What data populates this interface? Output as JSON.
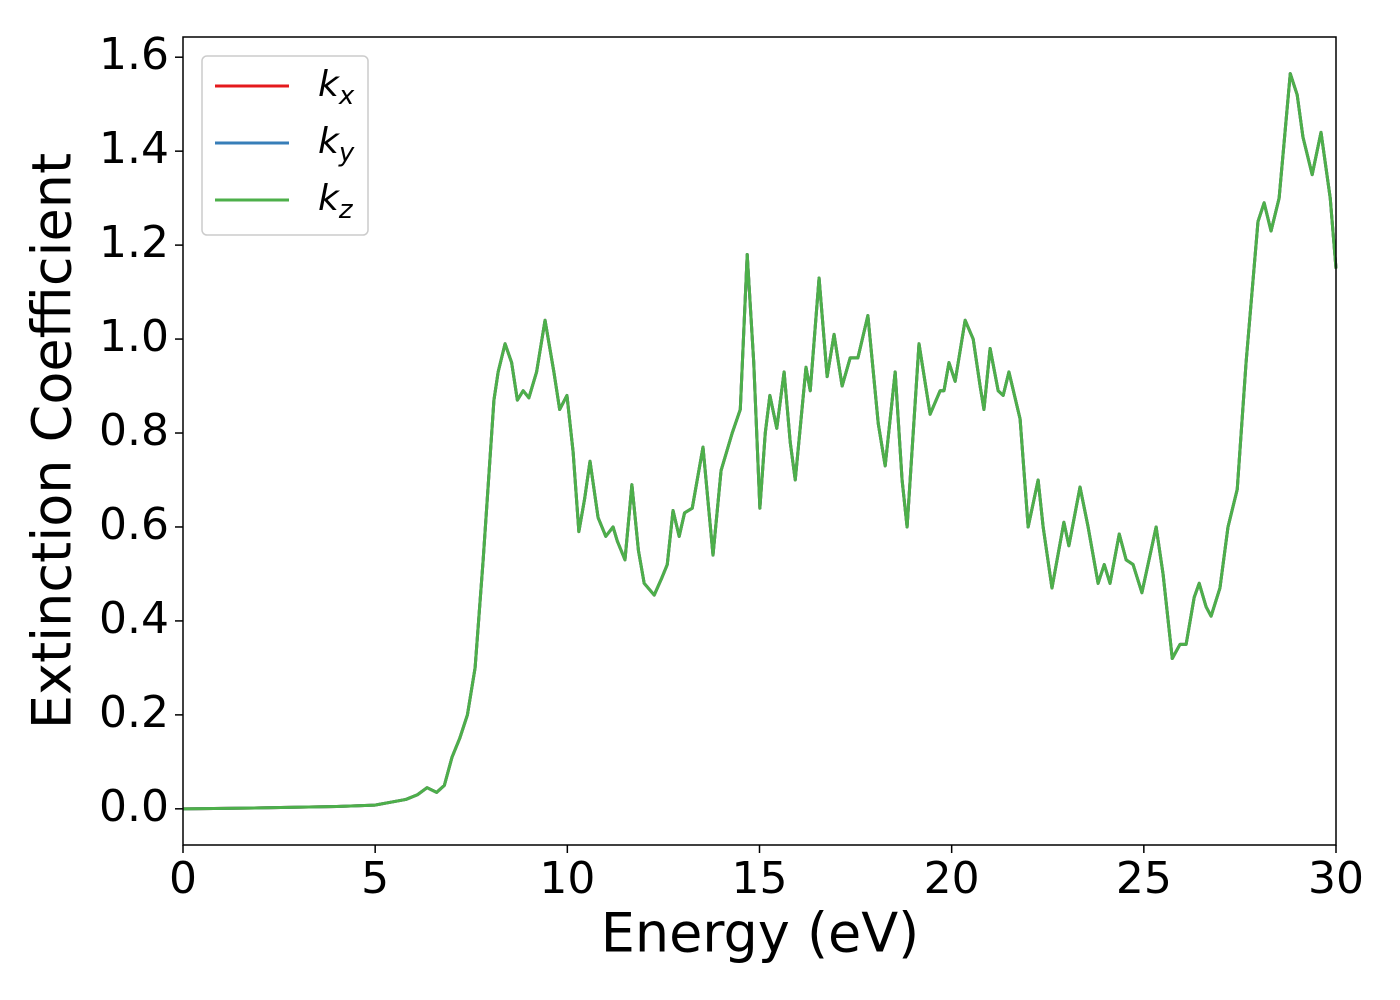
{
  "chart_data": {
    "type": "line",
    "xlabel": "Energy (eV)",
    "ylabel": "Extinction Coefficient",
    "x": [
      0,
      2,
      4,
      5,
      5.8,
      6.1,
      6.35,
      6.6,
      6.8,
      7.0,
      7.2,
      7.4,
      7.6,
      7.81,
      7.95,
      8.09,
      8.2,
      8.38,
      8.55,
      8.7,
      8.85,
      9.0,
      9.2,
      9.42,
      9.65,
      9.8,
      9.99,
      10.15,
      10.3,
      10.45,
      10.59,
      10.8,
      11.0,
      11.19,
      11.3,
      11.5,
      11.68,
      11.85,
      12.0,
      12.26,
      12.45,
      12.6,
      12.75,
      12.91,
      13.05,
      13.25,
      13.53,
      13.79,
      14.0,
      14.29,
      14.5,
      14.68,
      14.85,
      15.01,
      15.15,
      15.27,
      15.45,
      15.64,
      15.8,
      15.93,
      16.21,
      16.32,
      16.55,
      16.76,
      16.94,
      17.15,
      17.36,
      17.56,
      17.82,
      18.09,
      18.27,
      18.53,
      18.71,
      18.84,
      19.15,
      19.44,
      19.7,
      19.8,
      19.93,
      20.09,
      20.35,
      20.56,
      20.74,
      20.84,
      21.0,
      21.21,
      21.34,
      21.49,
      21.78,
      21.99,
      22.25,
      22.38,
      22.61,
      22.92,
      23.05,
      23.34,
      23.55,
      23.81,
      23.97,
      24.12,
      24.36,
      24.54,
      24.72,
      24.95,
      25.32,
      25.5,
      25.74,
      25.94,
      26.1,
      26.31,
      26.44,
      26.62,
      26.75,
      26.98,
      27.19,
      27.43,
      27.66,
      27.97,
      28.13,
      28.31,
      28.52,
      28.81,
      28.99,
      29.14,
      29.38,
      29.61,
      29.85,
      30
    ],
    "series": [
      {
        "name": "kx",
        "color": "#e41a1c",
        "values": [
          0,
          0.002,
          0.005,
          0.008,
          0.02,
          0.03,
          0.045,
          0.035,
          0.05,
          0.11,
          0.15,
          0.2,
          0.3,
          0.53,
          0.7,
          0.87,
          0.93,
          0.99,
          0.95,
          0.87,
          0.89,
          0.875,
          0.93,
          1.04,
          0.93,
          0.85,
          0.88,
          0.76,
          0.59,
          0.66,
          0.74,
          0.62,
          0.58,
          0.6,
          0.57,
          0.53,
          0.69,
          0.55,
          0.48,
          0.455,
          0.49,
          0.52,
          0.635,
          0.58,
          0.63,
          0.64,
          0.77,
          0.54,
          0.72,
          0.8,
          0.85,
          1.18,
          0.95,
          0.64,
          0.8,
          0.88,
          0.81,
          0.93,
          0.78,
          0.7,
          0.94,
          0.89,
          1.13,
          0.92,
          1.01,
          0.9,
          0.96,
          0.96,
          1.05,
          0.82,
          0.73,
          0.93,
          0.7,
          0.6,
          0.99,
          0.84,
          0.89,
          0.89,
          0.95,
          0.91,
          1.04,
          1.0,
          0.9,
          0.85,
          0.98,
          0.89,
          0.88,
          0.93,
          0.83,
          0.6,
          0.7,
          0.6,
          0.47,
          0.61,
          0.56,
          0.685,
          0.6,
          0.48,
          0.52,
          0.48,
          0.585,
          0.53,
          0.52,
          0.46,
          0.6,
          0.5,
          0.32,
          0.35,
          0.35,
          0.45,
          0.48,
          0.43,
          0.41,
          0.47,
          0.6,
          0.68,
          0.95,
          1.25,
          1.29,
          1.23,
          1.3,
          1.565,
          1.52,
          1.43,
          1.35,
          1.44,
          1.3,
          1.15
        ]
      },
      {
        "name": "ky",
        "color": "#377eb8",
        "values": [
          0,
          0.002,
          0.005,
          0.008,
          0.02,
          0.03,
          0.045,
          0.035,
          0.05,
          0.11,
          0.15,
          0.2,
          0.3,
          0.53,
          0.7,
          0.87,
          0.93,
          0.99,
          0.95,
          0.87,
          0.89,
          0.875,
          0.93,
          1.04,
          0.93,
          0.85,
          0.88,
          0.76,
          0.59,
          0.66,
          0.74,
          0.62,
          0.58,
          0.6,
          0.57,
          0.53,
          0.69,
          0.55,
          0.48,
          0.455,
          0.49,
          0.52,
          0.635,
          0.58,
          0.63,
          0.64,
          0.77,
          0.54,
          0.72,
          0.8,
          0.85,
          1.18,
          0.95,
          0.64,
          0.8,
          0.88,
          0.81,
          0.93,
          0.78,
          0.7,
          0.94,
          0.89,
          1.13,
          0.92,
          1.01,
          0.9,
          0.96,
          0.96,
          1.05,
          0.82,
          0.73,
          0.93,
          0.7,
          0.6,
          0.99,
          0.84,
          0.89,
          0.89,
          0.95,
          0.91,
          1.04,
          1.0,
          0.9,
          0.85,
          0.98,
          0.89,
          0.88,
          0.93,
          0.83,
          0.6,
          0.7,
          0.6,
          0.47,
          0.61,
          0.56,
          0.685,
          0.6,
          0.48,
          0.52,
          0.48,
          0.585,
          0.53,
          0.52,
          0.46,
          0.6,
          0.5,
          0.32,
          0.35,
          0.35,
          0.45,
          0.48,
          0.43,
          0.41,
          0.47,
          0.6,
          0.68,
          0.95,
          1.25,
          1.29,
          1.23,
          1.3,
          1.565,
          1.52,
          1.43,
          1.35,
          1.44,
          1.3,
          1.15
        ]
      },
      {
        "name": "kz",
        "color": "#4daf4a",
        "values": [
          0,
          0.002,
          0.005,
          0.008,
          0.02,
          0.03,
          0.045,
          0.035,
          0.05,
          0.11,
          0.15,
          0.2,
          0.3,
          0.53,
          0.7,
          0.87,
          0.93,
          0.99,
          0.95,
          0.87,
          0.89,
          0.875,
          0.93,
          1.04,
          0.93,
          0.85,
          0.88,
          0.76,
          0.59,
          0.66,
          0.74,
          0.62,
          0.58,
          0.6,
          0.57,
          0.53,
          0.69,
          0.55,
          0.48,
          0.455,
          0.49,
          0.52,
          0.635,
          0.58,
          0.63,
          0.64,
          0.77,
          0.54,
          0.72,
          0.8,
          0.85,
          1.18,
          0.95,
          0.64,
          0.8,
          0.88,
          0.81,
          0.93,
          0.78,
          0.7,
          0.94,
          0.89,
          1.13,
          0.92,
          1.01,
          0.9,
          0.96,
          0.96,
          1.05,
          0.82,
          0.73,
          0.93,
          0.7,
          0.6,
          0.99,
          0.84,
          0.89,
          0.89,
          0.95,
          0.91,
          1.04,
          1.0,
          0.9,
          0.85,
          0.98,
          0.89,
          0.88,
          0.93,
          0.83,
          0.6,
          0.7,
          0.6,
          0.47,
          0.61,
          0.56,
          0.685,
          0.6,
          0.48,
          0.52,
          0.48,
          0.585,
          0.53,
          0.52,
          0.46,
          0.6,
          0.5,
          0.32,
          0.35,
          0.35,
          0.45,
          0.48,
          0.43,
          0.41,
          0.47,
          0.6,
          0.68,
          0.95,
          1.25,
          1.29,
          1.23,
          1.3,
          1.565,
          1.52,
          1.43,
          1.35,
          1.44,
          1.3,
          1.15
        ]
      }
    ],
    "xlim": [
      0,
      30
    ],
    "xticks": [
      0,
      5,
      10,
      15,
      20,
      25,
      30
    ],
    "ylim": [
      -0.077,
      1.643
    ],
    "yticks": [
      {
        "value": 0,
        "label": "0.0"
      },
      0.2,
      0.4,
      0.6,
      0.8,
      {
        "value": 1,
        "label": "1.0"
      },
      1.2,
      1.4,
      1.6
    ],
    "grid": false,
    "legend": "upper left"
  }
}
